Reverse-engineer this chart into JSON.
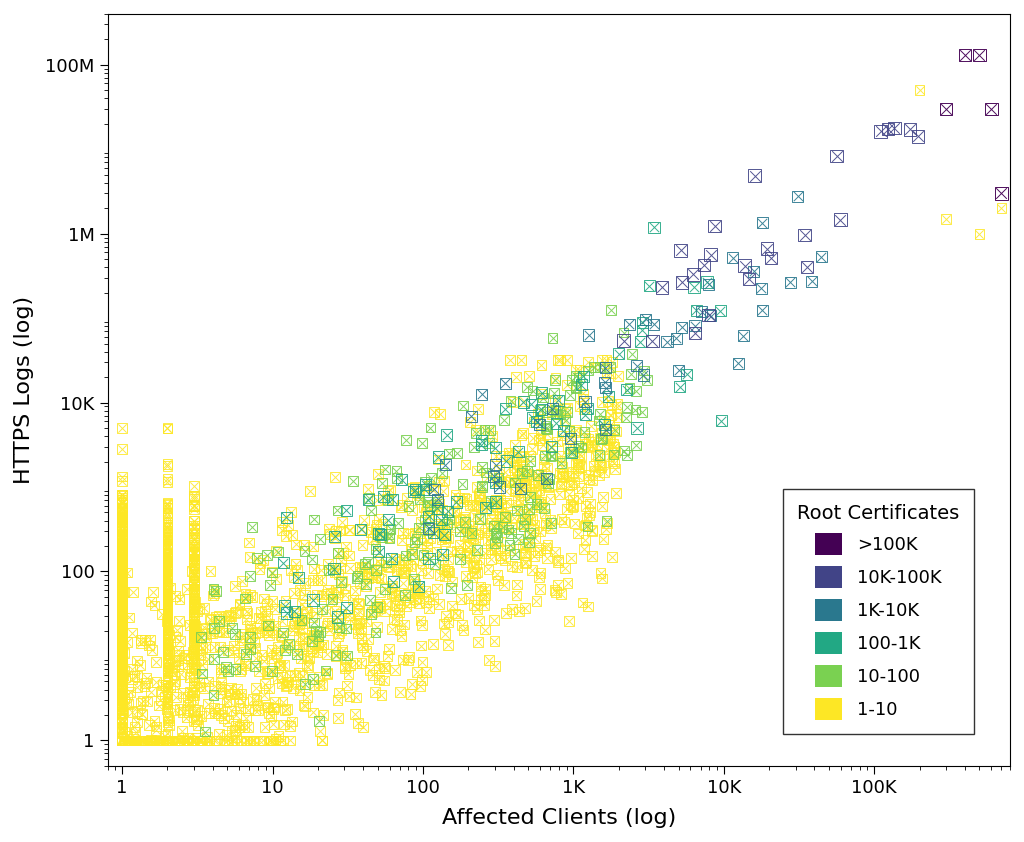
{
  "xlabel": "Affected Clients (log)",
  "ylabel": "HTTPS Logs (log)",
  "legend_title": "Root Certificates",
  "legend_labels": [
    ">100K",
    "10K-100K",
    "1K-10K",
    "100-1K",
    "10-100",
    "1-10"
  ],
  "legend_colors": [
    "#440154",
    "#414487",
    "#2a788e",
    "#22a884",
    "#7ad151",
    "#fde725"
  ],
  "xlim": [
    0.8,
    800000
  ],
  "ylim": [
    0.5,
    400000000.0
  ],
  "xticks": [
    1,
    10,
    100,
    1000,
    10000,
    100000
  ],
  "xticklabels": [
    "1",
    "10",
    "100",
    "1K",
    "10K",
    "100K"
  ],
  "yticks": [
    1,
    100,
    10000,
    1000000,
    100000000
  ],
  "yticklabels": [
    "1",
    "100",
    "10K",
    "1M",
    "100M"
  ],
  "background_color": "#ffffff",
  "marker_size": 7,
  "alpha": 0.9
}
